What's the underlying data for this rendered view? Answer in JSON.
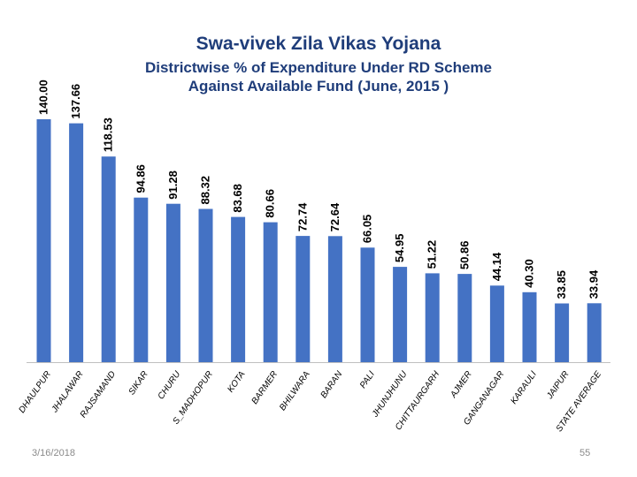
{
  "slide": {
    "date": "3/16/2018",
    "page_number": "55"
  },
  "chart_data": {
    "type": "bar",
    "title": "Swa-vivek Zila Vikas Yojana",
    "subtitle": "Districtwise % of Expenditure Under RD Scheme Against  Available Fund (June, 2015 )",
    "subtitle_lines": [
      "Districtwise % of Expenditure Under RD Scheme",
      "Against  Available Fund (June, 2015 )"
    ],
    "bar_color": "#4472c4",
    "categories": [
      "DHAULPUR",
      "JHALAWAR",
      "RAJSAMAND",
      "SIKAR",
      "CHURU",
      "S_MADHOPUR",
      "KOTA",
      "BARMER",
      "BHILWARA",
      "BARAN",
      "PALI",
      "JHUNJHUNU",
      "CHITTAURGARH",
      "AJMER",
      "GANGANAGAR",
      "KARAULI",
      "JAIPUR",
      "STATE AVERAGE"
    ],
    "values": [
      140.0,
      137.66,
      118.53,
      94.86,
      91.28,
      88.32,
      83.68,
      80.66,
      72.74,
      72.64,
      66.05,
      54.95,
      51.22,
      50.86,
      44.14,
      40.3,
      33.85,
      33.94
    ],
    "value_labels": [
      "140.00",
      "137.66",
      "118.53",
      "94.86",
      "91.28",
      "88.32",
      "83.68",
      "80.66",
      "72.74",
      "72.64",
      "66.05",
      "54.95",
      "51.22",
      "50.86",
      "44.14",
      "40.30",
      "33.85",
      "33.94"
    ],
    "ylim": [
      0,
      140
    ],
    "xlabel": "",
    "ylabel": "",
    "grid": false,
    "legend": "none"
  }
}
